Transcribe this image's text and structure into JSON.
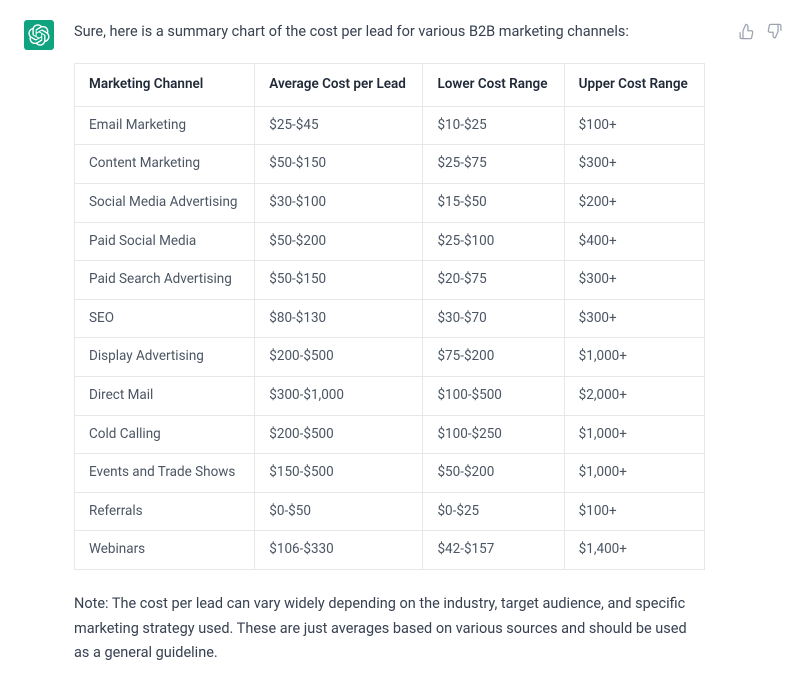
{
  "intro": "Sure, here is a summary chart of the cost per lead for various B2B marketing channels:",
  "table": {
    "columns": [
      "Marketing Channel",
      "Average Cost per Lead",
      "Lower Cost Range",
      "Upper Cost Range"
    ],
    "rows": [
      [
        "Email Marketing",
        "$25-$45",
        "$10-$25",
        "$100+"
      ],
      [
        "Content Marketing",
        "$50-$150",
        "$25-$75",
        "$300+"
      ],
      [
        "Social Media Advertising",
        "$30-$100",
        "$15-$50",
        "$200+"
      ],
      [
        "Paid Social Media",
        "$50-$200",
        "$25-$100",
        "$400+"
      ],
      [
        "Paid Search Advertising",
        "$50-$150",
        "$20-$75",
        "$300+"
      ],
      [
        "SEO",
        "$80-$130",
        "$30-$70",
        "$300+"
      ],
      [
        "Display Advertising",
        "$200-$500",
        "$75-$200",
        "$1,000+"
      ],
      [
        "Direct Mail",
        "$300-$1,000",
        "$100-$500",
        "$2,000+"
      ],
      [
        "Cold Calling",
        "$200-$500",
        "$100-$250",
        "$1,000+"
      ],
      [
        "Events and Trade Shows",
        "$150-$500",
        "$50-$200",
        "$1,000+"
      ],
      [
        "Referrals",
        "$0-$50",
        "$0-$25",
        "$100+"
      ],
      [
        "Webinars",
        "$106-$330",
        "$42-$157",
        "$1,400+"
      ]
    ]
  },
  "note": "Note: The cost per lead can vary widely depending on the industry, target audience, and specific marketing strategy used. These are just averages based on various sources and should be used as a general guideline.",
  "colors": {
    "avatar_bg": "#10a37f",
    "border": "#e5e7eb",
    "text_primary": "#374151",
    "text_secondary": "#4b5563",
    "icon_muted": "#9ca3af"
  }
}
